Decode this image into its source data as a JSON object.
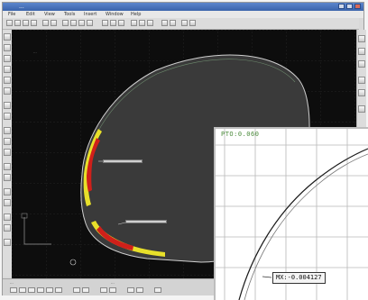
{
  "window": {
    "title": "...",
    "menu": [
      "File",
      "Edit",
      "View",
      "Tools",
      "Insert",
      "Window",
      "Help"
    ]
  },
  "viewport": {
    "label_top": "...",
    "background": "#0d0d0d",
    "shape_fill": "#3a3a3a",
    "deviation_colors": {
      "high": "#d0201a",
      "mid": "#e8e02a"
    }
  },
  "statusbar": {
    "left_text": "...",
    "right_text": "..."
  },
  "inset": {
    "header": "PTO:0.060",
    "measure_label": "MX:-0.004127",
    "grid_color": "#b8b8b8",
    "curve_color": "#1a1a1a"
  },
  "icons": {
    "toolbar": [
      "new-icon",
      "open-icon",
      "save-icon",
      "print-icon",
      "undo-icon",
      "redo-icon",
      "zoom-icon",
      "pan-icon",
      "fit-icon",
      "measure-icon"
    ],
    "left": [
      "select-icon",
      "line-icon",
      "arc-icon",
      "circle-icon",
      "point-icon",
      "spline-icon",
      "dimension-icon",
      "layer-icon"
    ],
    "right": [
      "view-top-icon",
      "view-front-icon",
      "view-side-icon",
      "rotate-icon",
      "shade-icon",
      "grid-icon"
    ]
  }
}
